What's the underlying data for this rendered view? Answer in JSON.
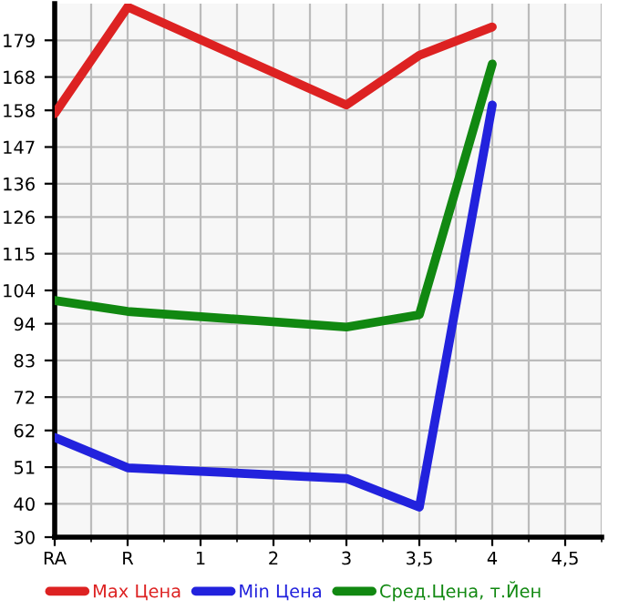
{
  "chart_data": {
    "type": "line",
    "categories": [
      "RA",
      "R",
      "1",
      "2",
      "3",
      "3,5",
      "4",
      "4,5"
    ],
    "series": [
      {
        "name": "Max Цена",
        "color": "#dd2222",
        "values": [
          157,
          189,
          null,
          null,
          159.6,
          174.5,
          183,
          null
        ]
      },
      {
        "name": "Min Цена",
        "color": "#2222dd",
        "values": [
          59.9,
          50.8,
          null,
          null,
          47.6,
          39,
          159.6,
          null
        ]
      },
      {
        "name": "Сред.Цена, т.Йен",
        "color": "#118811",
        "values": [
          101,
          97.7,
          null,
          null,
          93,
          96.7,
          171.9,
          null
        ]
      }
    ],
    "ylim": [
      30,
      190
    ],
    "yticks": [
      30,
      40,
      51,
      62,
      72,
      83,
      94,
      104,
      115,
      126,
      136,
      147,
      158,
      168,
      179
    ],
    "grid": true,
    "legend": "bottom",
    "marker": "none",
    "line_style": "solid"
  }
}
